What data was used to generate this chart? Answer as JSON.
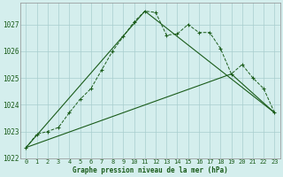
{
  "title": "Graphe pression niveau de la mer (hPa)",
  "background_color": "#d4eeed",
  "grid_color": "#a8cece",
  "line_color": "#1a5c1a",
  "xlim": [
    -0.5,
    23.5
  ],
  "ylim": [
    1022,
    1027.8
  ],
  "yticks": [
    1022,
    1023,
    1024,
    1025,
    1026,
    1027
  ],
  "xticks": [
    0,
    1,
    2,
    3,
    4,
    5,
    6,
    7,
    8,
    9,
    10,
    11,
    12,
    13,
    14,
    15,
    16,
    17,
    18,
    19,
    20,
    21,
    22,
    23
  ],
  "series1_x": [
    0,
    1,
    2,
    3,
    4,
    5,
    6,
    7,
    8,
    9,
    10,
    11,
    12,
    13,
    14,
    15,
    16,
    17,
    18,
    19,
    20,
    21,
    22,
    23
  ],
  "series1_y": [
    1022.4,
    1022.9,
    1023.0,
    1023.15,
    1023.7,
    1024.2,
    1024.6,
    1025.3,
    1026.0,
    1026.55,
    1027.1,
    1027.5,
    1027.45,
    1026.6,
    1026.65,
    1027.0,
    1026.7,
    1026.7,
    1026.1,
    1025.15,
    1025.5,
    1025.0,
    1024.6,
    1023.7
  ],
  "line2_x": [
    0,
    11,
    23
  ],
  "line2_y": [
    1022.4,
    1027.5,
    1023.7
  ],
  "line3_x": [
    0,
    19,
    23
  ],
  "line3_y": [
    1022.4,
    1025.15,
    1023.7
  ]
}
